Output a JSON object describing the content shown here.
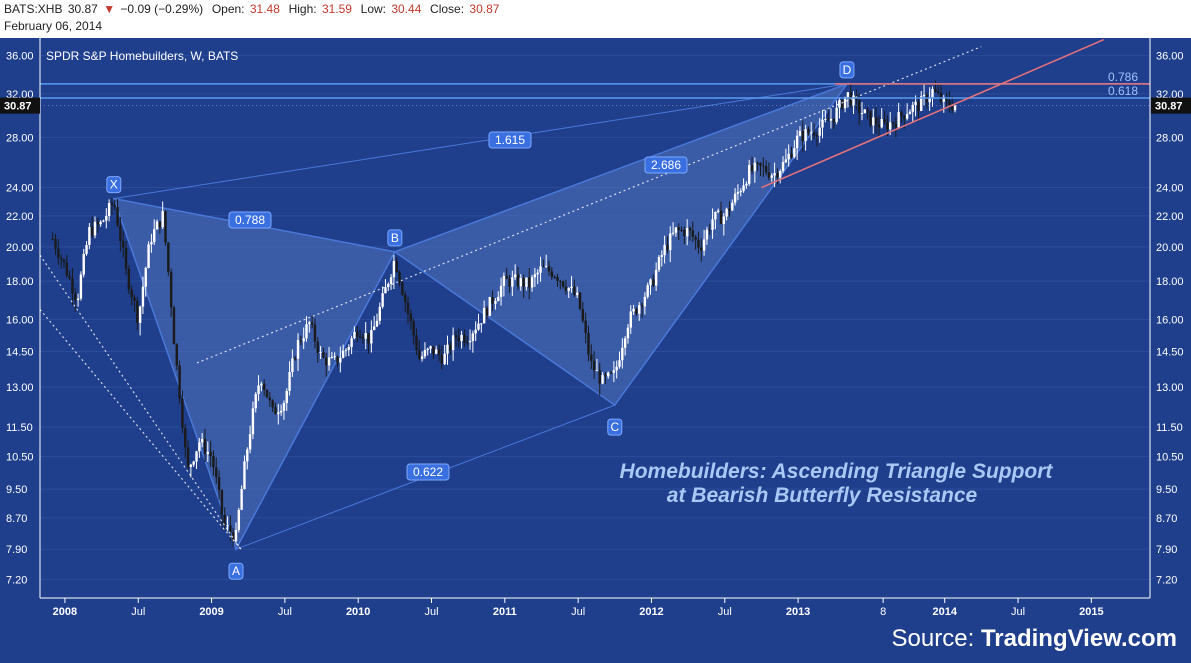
{
  "header": {
    "symbol": "BATS:XHB",
    "last": "30.87",
    "change_arrow": "▼",
    "change": "−0.09 (−0.29%)",
    "open_label": "Open:",
    "open": "31.48",
    "high_label": "High:",
    "high": "31.59",
    "low_label": "Low:",
    "low": "30.44",
    "close_label": "Close:",
    "close": "30.87",
    "date": "February 06, 2014"
  },
  "source": {
    "prefix": "Source:",
    "brand": "TradingView.com"
  },
  "colors": {
    "background": "#1f3f8c",
    "pattern_fill": "#5b7fc6",
    "pattern_line": "#4a78d8",
    "fib_line": "#5b9bf0",
    "triangle": "#e8737a",
    "title_text": "#a9c8f5",
    "bull_candle": "#ffffff",
    "bear_candle": "#1a1a1a"
  },
  "chart_data": {
    "type": "candlestick",
    "title": "SPDR S&P Homebuilders, W, BATS",
    "annotation_title": "Homebuilders: Ascending Triangle Support at Bearish Butterfly Resistance",
    "annotation_lines": [
      "Homebuilders: Ascending Triangle Support",
      "at Bearish Butterfly Resistance"
    ],
    "y_scale": "log",
    "ylim": [
      6.8,
      38
    ],
    "y_ticks": [
      "36.00",
      "32.00",
      "28.00",
      "24.00",
      "22.00",
      "20.00",
      "18.00",
      "16.00",
      "14.50",
      "13.00",
      "11.50",
      "10.50",
      "9.50",
      "8.70",
      "7.90",
      "7.20"
    ],
    "x_ticks": [
      "2008",
      "Jul",
      "2009",
      "Jul",
      "2010",
      "Jul",
      "2011",
      "Jul",
      "2012",
      "Jul",
      "2013",
      "8",
      "2014",
      "Jul",
      "2015"
    ],
    "last_price_label": "30.87",
    "pattern_points": [
      {
        "label": "X",
        "date": "2008-05",
        "price": 23.2
      },
      {
        "label": "A",
        "date": "2009-03",
        "price": 7.9
      },
      {
        "label": "B",
        "date": "2010-04",
        "price": 19.7
      },
      {
        "label": "C",
        "date": "2011-10",
        "price": 12.3
      },
      {
        "label": "D",
        "date": "2013-05",
        "price": 33.0
      }
    ],
    "ratios": [
      {
        "label": "0.788",
        "from": "XA",
        "to": "B"
      },
      {
        "label": "1.615",
        "from": "X",
        "to": "D"
      },
      {
        "label": "2.686",
        "from": "B",
        "to": "D"
      },
      {
        "label": "0.622",
        "from": "A",
        "to": "C"
      }
    ],
    "fib_levels": [
      {
        "label": "0.786",
        "price": 33.0
      },
      {
        "label": "0.618",
        "price": 31.6
      }
    ],
    "triangle": {
      "resistance": 33.0,
      "support_from": {
        "date": "2012-10",
        "price": 24.0
      },
      "support_to": {
        "date": "2015-02",
        "price": 37.8
      }
    },
    "weekly_close_path": [
      [
        "2007-12",
        20.5
      ],
      [
        "2008-01",
        18.8
      ],
      [
        "2008-02",
        17.0
      ],
      [
        "2008-03",
        21.0
      ],
      [
        "2008-04",
        21.5
      ],
      [
        "2008-05",
        23.0
      ],
      [
        "2008-06",
        18.5
      ],
      [
        "2008-07",
        16.0
      ],
      [
        "2008-08",
        20.5
      ],
      [
        "2008-09",
        22.0
      ],
      [
        "2008-10",
        14.5
      ],
      [
        "2008-11",
        10.0
      ],
      [
        "2008-12",
        11.0
      ],
      [
        "2009-01",
        10.5
      ],
      [
        "2009-02",
        8.5
      ],
      [
        "2009-03",
        8.2
      ],
      [
        "2009-04",
        11.0
      ],
      [
        "2009-05",
        13.5
      ],
      [
        "2009-06",
        12.0
      ],
      [
        "2009-07",
        12.5
      ],
      [
        "2009-08",
        14.8
      ],
      [
        "2009-09",
        15.8
      ],
      [
        "2009-10",
        14.2
      ],
      [
        "2009-11",
        14.0
      ],
      [
        "2009-12",
        14.6
      ],
      [
        "2010-01",
        15.6
      ],
      [
        "2010-02",
        15.0
      ],
      [
        "2010-03",
        17.0
      ],
      [
        "2010-04",
        19.3
      ],
      [
        "2010-05",
        16.5
      ],
      [
        "2010-06",
        14.2
      ],
      [
        "2010-07",
        14.6
      ],
      [
        "2010-08",
        14.2
      ],
      [
        "2010-09",
        15.2
      ],
      [
        "2010-10",
        15.2
      ],
      [
        "2010-11",
        16.0
      ],
      [
        "2010-12",
        17.0
      ],
      [
        "2011-01",
        18.0
      ],
      [
        "2011-02",
        18.0
      ],
      [
        "2011-03",
        17.8
      ],
      [
        "2011-04",
        18.7
      ],
      [
        "2011-05",
        18.5
      ],
      [
        "2011-06",
        17.8
      ],
      [
        "2011-07",
        17.0
      ],
      [
        "2011-08",
        14.0
      ],
      [
        "2011-09",
        13.2
      ],
      [
        "2011-10",
        13.5
      ],
      [
        "2011-11",
        15.8
      ],
      [
        "2011-12",
        16.8
      ],
      [
        "2012-01",
        17.8
      ],
      [
        "2012-02",
        19.8
      ],
      [
        "2012-03",
        21.0
      ],
      [
        "2012-04",
        21.0
      ],
      [
        "2012-05",
        20.0
      ],
      [
        "2012-06",
        21.8
      ],
      [
        "2012-07",
        22.0
      ],
      [
        "2012-08",
        23.5
      ],
      [
        "2012-09",
        25.2
      ],
      [
        "2012-10",
        25.5
      ],
      [
        "2012-11",
        25.0
      ],
      [
        "2012-12",
        26.0
      ],
      [
        "2013-01",
        28.0
      ],
      [
        "2013-02",
        28.5
      ],
      [
        "2013-03",
        29.0
      ],
      [
        "2013-04",
        30.0
      ],
      [
        "2013-05",
        32.0
      ],
      [
        "2013-06",
        30.5
      ],
      [
        "2013-07",
        29.5
      ],
      [
        "2013-08",
        29.0
      ],
      [
        "2013-09",
        29.5
      ],
      [
        "2013-10",
        30.5
      ],
      [
        "2013-11",
        31.0
      ],
      [
        "2013-12",
        32.3
      ],
      [
        "2014-01",
        31.0
      ],
      [
        "2014-02",
        30.9
      ]
    ]
  }
}
